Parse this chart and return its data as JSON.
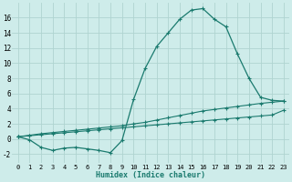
{
  "xlabel": "Humidex (Indice chaleur)",
  "background_color": "#ceecea",
  "grid_color": "#afd4d0",
  "line_color": "#1a7a6e",
  "xlim": [
    -0.5,
    23.5
  ],
  "ylim": [
    -3.2,
    18.0
  ],
  "yticks": [
    -2,
    0,
    2,
    4,
    6,
    8,
    10,
    12,
    14,
    16
  ],
  "xticks": [
    0,
    1,
    2,
    3,
    4,
    5,
    6,
    7,
    8,
    9,
    10,
    11,
    12,
    13,
    14,
    15,
    16,
    17,
    18,
    19,
    20,
    21,
    22,
    23
  ],
  "series1_x": [
    0,
    1,
    2,
    3,
    4,
    5,
    6,
    7,
    8,
    9,
    10,
    11,
    12,
    13,
    14,
    15,
    16,
    17,
    18,
    19,
    20,
    21,
    22,
    23
  ],
  "series1_y": [
    0.3,
    -0.1,
    -1.1,
    -1.5,
    -1.2,
    -1.1,
    -1.3,
    -1.5,
    -1.8,
    -0.2,
    5.2,
    9.3,
    12.2,
    14.0,
    15.8,
    17.0,
    17.2,
    15.8,
    14.8,
    11.2,
    8.0,
    5.5,
    5.1,
    5.0
  ],
  "series2_x": [
    0,
    1,
    2,
    3,
    4,
    5,
    6,
    7,
    8,
    9,
    10,
    11,
    12,
    13,
    14,
    15,
    16,
    17,
    18,
    19,
    20,
    21,
    22,
    23
  ],
  "series2_y": [
    0.3,
    0.5,
    0.7,
    0.85,
    1.0,
    1.15,
    1.3,
    1.45,
    1.6,
    1.75,
    2.0,
    2.2,
    2.5,
    2.8,
    3.1,
    3.4,
    3.7,
    3.9,
    4.1,
    4.3,
    4.5,
    4.7,
    4.85,
    5.0
  ],
  "series3_x": [
    0,
    1,
    2,
    3,
    4,
    5,
    6,
    7,
    8,
    9,
    10,
    11,
    12,
    13,
    14,
    15,
    16,
    17,
    18,
    19,
    20,
    21,
    22,
    23
  ],
  "series3_y": [
    0.3,
    0.44,
    0.57,
    0.7,
    0.83,
    0.96,
    1.09,
    1.22,
    1.35,
    1.48,
    1.61,
    1.74,
    1.87,
    2.0,
    2.13,
    2.26,
    2.39,
    2.52,
    2.65,
    2.78,
    2.91,
    3.04,
    3.17,
    3.8
  ],
  "xlabel_fontsize": 6.0,
  "tick_fontsize_x": 5.0,
  "tick_fontsize_y": 5.5
}
